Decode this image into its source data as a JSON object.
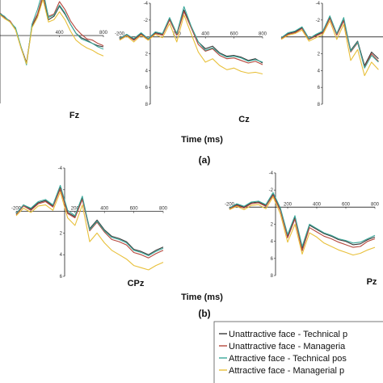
{
  "figure": {
    "panel_a_label": "(a)",
    "panel_b_label": "(b)",
    "time_label_a": "Time (ms)",
    "time_label_b": "Time (ms)"
  },
  "colors": {
    "unattractive_technical": "#3a3a3a",
    "unattractive_managerial": "#b5463c",
    "attractive_technical": "#3aa89a",
    "attractive_managerial": "#e8c03a",
    "axis": "#222222"
  },
  "legend": {
    "items": [
      {
        "label": "Unattractive face - Technical p",
        "color": "#3a3a3a"
      },
      {
        "label": "Unattractive face - Manageria",
        "color": "#b5463c"
      },
      {
        "label": "Attractive face - Technical pos",
        "color": "#3aa89a"
      },
      {
        "label": "Attractive face - Managerial p",
        "color": "#e8c03a"
      }
    ]
  },
  "chart_data": [
    {
      "type": "line",
      "electrode": "Fz",
      "xlim": [
        -200,
        800
      ],
      "ylim": [
        -4,
        6
      ],
      "y_inverted": true,
      "xticks": [
        "400",
        "800"
      ],
      "yticks": [],
      "x": [
        -200,
        -150,
        -100,
        -50,
        0,
        50,
        100,
        150,
        200,
        250,
        300,
        350,
        400,
        450,
        500,
        550,
        600,
        650,
        700,
        750,
        800
      ],
      "series": [
        {
          "values": [
            -1.5,
            -2.0,
            -1.6,
            -1.2,
            -0.6,
            1.0,
            2.4,
            -0.8,
            -1.8,
            -3.3,
            -1.4,
            -1.7,
            -2.6,
            -1.9,
            -1.0,
            -0.2,
            0.2,
            0.4,
            0.7,
            0.9,
            1.0
          ]
        },
        {
          "values": [
            -1.6,
            -2.1,
            -1.6,
            -1.3,
            -0.6,
            1.1,
            2.5,
            -0.9,
            -1.9,
            -3.6,
            -1.7,
            -1.9,
            -3.0,
            -2.3,
            -1.3,
            -0.6,
            -0.1,
            0.3,
            0.4,
            0.7,
            0.9
          ]
        },
        {
          "values": [
            -1.5,
            -2.0,
            -1.7,
            -1.2,
            -0.7,
            1.0,
            2.6,
            -1.0,
            -2.3,
            -4.0,
            -1.6,
            -1.8,
            -2.7,
            -2.0,
            -1.0,
            -0.2,
            0.3,
            0.5,
            0.7,
            1.0,
            1.2
          ]
        },
        {
          "values": [
            -1.4,
            -1.9,
            -1.5,
            -1.2,
            -0.5,
            1.1,
            2.5,
            -0.7,
            -1.6,
            -3.2,
            -1.2,
            -1.4,
            -2.1,
            -1.4,
            -0.4,
            0.4,
            0.8,
            1.1,
            1.3,
            1.6,
            1.8
          ]
        }
      ]
    },
    {
      "type": "line",
      "electrode": "Cz",
      "xlim": [
        -200,
        800
      ],
      "ylim": [
        -4,
        8
      ],
      "y_inverted": true,
      "xticks": [
        "-200",
        "200",
        "400",
        "600",
        "800"
      ],
      "yticks": [
        "-4",
        "-2",
        "2",
        "4",
        "6",
        "8"
      ],
      "x": [
        -200,
        -150,
        -100,
        -50,
        0,
        50,
        100,
        150,
        200,
        250,
        300,
        350,
        400,
        450,
        500,
        550,
        600,
        650,
        700,
        750,
        800
      ],
      "series": [
        {
          "values": [
            0.2,
            -0.3,
            0.3,
            -0.4,
            0.2,
            -0.5,
            -0.3,
            -2.1,
            -0.3,
            -3.2,
            -1.2,
            0.6,
            1.4,
            1.1,
            1.9,
            2.3,
            2.2,
            2.4,
            2.8,
            2.6,
            3.1
          ]
        },
        {
          "values": [
            0.3,
            -0.2,
            0.4,
            -0.3,
            0.3,
            -0.4,
            -0.2,
            -2.0,
            -0.2,
            -3.0,
            -1.1,
            0.9,
            1.7,
            1.4,
            2.2,
            2.6,
            2.5,
            2.8,
            3.1,
            2.9,
            3.3
          ]
        },
        {
          "values": [
            0.2,
            -0.3,
            0.2,
            -0.5,
            0.2,
            -0.6,
            -0.4,
            -2.3,
            -0.4,
            -3.6,
            -1.3,
            0.6,
            1.6,
            1.3,
            2.0,
            2.4,
            2.3,
            2.5,
            2.9,
            2.7,
            3.0
          ]
        },
        {
          "values": [
            0.4,
            -0.1,
            0.6,
            -0.2,
            0.4,
            -0.3,
            0.1,
            -1.6,
            0.6,
            -2.6,
            -0.4,
            1.8,
            3.0,
            2.6,
            3.4,
            3.9,
            3.7,
            4.1,
            4.3,
            4.2,
            4.4
          ]
        }
      ]
    },
    {
      "type": "line",
      "electrode": "",
      "xlim": [
        -200,
        800
      ],
      "ylim": [
        -4,
        8
      ],
      "y_inverted": true,
      "xticks": [],
      "yticks": [
        "-4",
        "-2",
        "2",
        "4",
        "6",
        "8"
      ],
      "x": [
        -200,
        -150,
        -100,
        -50,
        0,
        50,
        100,
        150,
        200,
        250,
        300,
        350,
        400,
        450,
        500
      ],
      "series": [
        {
          "values": [
            0.1,
            -0.4,
            -0.6,
            -1.1,
            0.2,
            -0.2,
            -0.6,
            -2.3,
            -0.3,
            -2.0,
            1.6,
            0.5,
            3.4,
            1.8,
            2.6
          ]
        },
        {
          "values": [
            0.2,
            -0.3,
            -0.5,
            -1.0,
            0.3,
            -0.1,
            -0.5,
            -2.2,
            -0.2,
            -1.9,
            1.8,
            0.7,
            3.6,
            2.0,
            2.9
          ]
        },
        {
          "values": [
            0.1,
            -0.5,
            -0.7,
            -1.2,
            0.2,
            -0.3,
            -0.7,
            -2.5,
            -0.4,
            -2.3,
            1.7,
            0.6,
            3.7,
            2.2,
            3.0
          ]
        },
        {
          "values": [
            0.3,
            -0.2,
            -0.4,
            -0.8,
            0.5,
            0.1,
            -0.3,
            -1.9,
            0.3,
            -1.5,
            2.8,
            1.5,
            4.6,
            3.0,
            3.9
          ]
        }
      ]
    },
    {
      "type": "line",
      "electrode": "CPz",
      "xlim": [
        -200,
        800
      ],
      "ylim": [
        -4,
        6
      ],
      "y_inverted": true,
      "xticks": [
        "-200",
        "200",
        "400",
        "600",
        "800"
      ],
      "yticks": [
        "-4",
        "-2",
        "2",
        "4",
        "6"
      ],
      "x": [
        -200,
        -150,
        -100,
        -50,
        0,
        50,
        100,
        150,
        200,
        250,
        300,
        350,
        400,
        450,
        500,
        550,
        600,
        650,
        700,
        750,
        800
      ],
      "series": [
        {
          "values": [
            0.2,
            -0.6,
            -0.2,
            -0.8,
            -1.0,
            -0.5,
            -2.2,
            0.1,
            0.5,
            -1.2,
            1.6,
            0.8,
            1.7,
            2.3,
            2.5,
            2.8,
            3.5,
            3.7,
            4.0,
            3.6,
            3.3
          ]
        },
        {
          "values": [
            0.3,
            -0.5,
            -0.1,
            -0.7,
            -0.9,
            -0.4,
            -2.1,
            0.2,
            0.6,
            -1.1,
            1.8,
            1.0,
            1.9,
            2.6,
            2.8,
            3.1,
            3.8,
            4.0,
            4.3,
            3.9,
            3.6
          ]
        },
        {
          "values": [
            0.2,
            -0.6,
            -0.3,
            -0.9,
            -1.1,
            -0.6,
            -2.4,
            -0.1,
            0.4,
            -1.4,
            1.7,
            0.9,
            1.8,
            2.4,
            2.6,
            2.9,
            3.6,
            3.8,
            4.1,
            3.7,
            3.4
          ]
        },
        {
          "values": [
            0.4,
            -0.3,
            0.1,
            -0.5,
            -0.6,
            -0.1,
            -1.8,
            0.6,
            1.3,
            -0.6,
            2.8,
            2.0,
            2.9,
            3.6,
            4.0,
            4.4,
            5.0,
            5.2,
            5.4,
            5.0,
            4.7
          ]
        }
      ]
    },
    {
      "type": "line",
      "electrode": "Pz",
      "xlim": [
        -200,
        800
      ],
      "ylim": [
        -4,
        8
      ],
      "y_inverted": true,
      "xticks": [
        "-200",
        "200",
        "400",
        "600",
        "800"
      ],
      "yticks": [
        "-4",
        "-2",
        "2",
        "4",
        "6",
        "8"
      ],
      "x": [
        -200,
        -150,
        -100,
        -50,
        0,
        50,
        100,
        150,
        200,
        250,
        300,
        350,
        400,
        450,
        500,
        550,
        600,
        650,
        700,
        750,
        800
      ],
      "series": [
        {
          "values": [
            0.1,
            -0.3,
            0.0,
            -0.5,
            -0.6,
            -0.2,
            -1.5,
            0.3,
            3.4,
            1.2,
            4.8,
            2.1,
            2.6,
            3.1,
            3.4,
            3.8,
            4.0,
            4.4,
            4.3,
            3.8,
            3.5
          ]
        },
        {
          "values": [
            0.2,
            -0.2,
            0.1,
            -0.4,
            -0.5,
            -0.1,
            -1.4,
            0.4,
            3.6,
            1.4,
            5.1,
            2.4,
            2.9,
            3.4,
            3.7,
            4.1,
            4.4,
            4.7,
            4.6,
            4.0,
            3.7
          ]
        },
        {
          "values": [
            0.1,
            -0.4,
            -0.1,
            -0.6,
            -0.7,
            -0.3,
            -1.7,
            0.1,
            3.2,
            1.0,
            4.6,
            2.0,
            2.5,
            3.0,
            3.3,
            3.7,
            3.9,
            4.2,
            4.1,
            3.7,
            3.3
          ]
        },
        {
          "values": [
            0.3,
            -0.1,
            0.3,
            -0.2,
            -0.3,
            0.2,
            -1.2,
            0.8,
            4.1,
            2.0,
            5.5,
            3.0,
            3.5,
            4.2,
            4.6,
            5.0,
            5.3,
            5.6,
            5.4,
            5.0,
            4.7
          ]
        }
      ]
    }
  ]
}
